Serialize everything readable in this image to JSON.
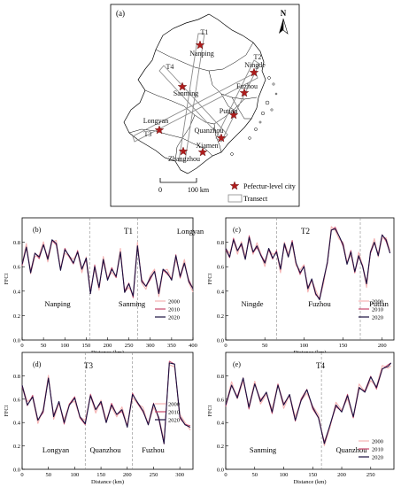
{
  "map": {
    "panel_label": "(a)",
    "north_label": "N",
    "scalebar_labels": [
      "0",
      "100 km"
    ],
    "cities": [
      {
        "name": "Nanping"
      },
      {
        "name": "Ningde"
      },
      {
        "name": "Sanming"
      },
      {
        "name": "Fuzhou"
      },
      {
        "name": "Putian"
      },
      {
        "name": "Longyan"
      },
      {
        "name": "Quanzhou"
      },
      {
        "name": "Xiamen"
      },
      {
        "name": "Zhangzhou"
      }
    ],
    "transects": [
      {
        "name": "T1"
      },
      {
        "name": "T2"
      },
      {
        "name": "T3"
      },
      {
        "name": "T4"
      }
    ],
    "legend": [
      {
        "label": "Pefectur-level city",
        "symbol": "star",
        "color": "#b01c1c"
      },
      {
        "label": "Transect",
        "symbol": "rectangle",
        "color": "#888888"
      }
    ]
  },
  "chart_data": [
    {
      "type": "line",
      "panel": "(b)",
      "transect": "T1",
      "ylabel": "FFCI",
      "xlabel": "Distance (km)",
      "xlim": [
        0,
        400
      ],
      "ylim": [
        0,
        1
      ],
      "xticks": [
        0,
        50,
        100,
        150,
        200,
        250,
        300,
        350,
        400
      ],
      "yticks": [
        0,
        0.2,
        0.4,
        0.6,
        0.8
      ],
      "section_dividers": [
        158,
        270
      ],
      "section_labels": [
        "Nanping",
        "Sanming",
        "Longyan"
      ],
      "legend": [
        "2000",
        "2010",
        "2020"
      ],
      "series_colors": [
        "#f5b2b2",
        "#c8486a",
        "#1a1040"
      ],
      "x": [
        0,
        10,
        20,
        30,
        40,
        50,
        60,
        70,
        80,
        90,
        100,
        110,
        120,
        130,
        140,
        150,
        160,
        170,
        180,
        190,
        200,
        210,
        220,
        230,
        240,
        250,
        260,
        270,
        280,
        290,
        300,
        310,
        320,
        330,
        340,
        350,
        360,
        370,
        380,
        390,
        400
      ],
      "y": [
        0.62,
        0.76,
        0.55,
        0.71,
        0.68,
        0.78,
        0.66,
        0.82,
        0.79,
        0.57,
        0.74,
        0.69,
        0.63,
        0.72,
        0.58,
        0.67,
        0.38,
        0.6,
        0.43,
        0.66,
        0.49,
        0.58,
        0.52,
        0.72,
        0.39,
        0.46,
        0.36,
        0.77,
        0.48,
        0.44,
        0.51,
        0.56,
        0.38,
        0.58,
        0.55,
        0.49,
        0.69,
        0.52,
        0.63,
        0.48,
        0.42
      ]
    },
    {
      "type": "line",
      "panel": "(c)",
      "transect": "T2",
      "ylabel": "FFCI",
      "xlabel": "Distance (km)",
      "xlim": [
        0,
        215
      ],
      "ylim": [
        0,
        1
      ],
      "xticks": [
        0,
        50,
        100,
        150,
        200
      ],
      "yticks": [
        0,
        0.2,
        0.4,
        0.6,
        0.8
      ],
      "section_dividers": [
        65,
        172
      ],
      "section_labels": [
        "Ningde",
        "Fuzhou",
        "Putian"
      ],
      "legend": [
        "2000",
        "2010",
        "2020"
      ],
      "series_colors": [
        "#f5b2b2",
        "#c8486a",
        "#1a1040"
      ],
      "x": [
        0,
        5,
        10,
        15,
        20,
        25,
        30,
        35,
        40,
        45,
        50,
        55,
        60,
        65,
        70,
        75,
        80,
        85,
        90,
        95,
        100,
        105,
        110,
        115,
        120,
        125,
        130,
        135,
        140,
        145,
        150,
        155,
        160,
        165,
        170,
        175,
        180,
        185,
        190,
        195,
        200,
        205,
        210
      ],
      "y": [
        0.75,
        0.68,
        0.82,
        0.73,
        0.79,
        0.66,
        0.84,
        0.72,
        0.77,
        0.69,
        0.63,
        0.75,
        0.67,
        0.72,
        0.58,
        0.79,
        0.68,
        0.8,
        0.63,
        0.55,
        0.6,
        0.42,
        0.5,
        0.38,
        0.33,
        0.49,
        0.64,
        0.9,
        0.91,
        0.85,
        0.78,
        0.62,
        0.72,
        0.56,
        0.69,
        0.6,
        0.46,
        0.72,
        0.8,
        0.69,
        0.86,
        0.82,
        0.71
      ]
    },
    {
      "type": "line",
      "panel": "(d)",
      "transect": "T3",
      "ylabel": "FFCI",
      "xlabel": "Distance (km)",
      "xlim": [
        0,
        325
      ],
      "ylim": [
        0,
        1
      ],
      "xticks": [
        0,
        50,
        100,
        150,
        200,
        250,
        300
      ],
      "yticks": [
        0,
        0.2,
        0.4,
        0.6,
        0.8
      ],
      "section_dividers": [
        120,
        210
      ],
      "section_labels": [
        "Longyan",
        "Quanzhou",
        "Fuzhou"
      ],
      "legend": [
        "2000",
        "2010",
        "2020"
      ],
      "series_colors": [
        "#f5b2b2",
        "#c8486a",
        "#1a1040"
      ],
      "x": [
        0,
        10,
        20,
        30,
        40,
        50,
        60,
        70,
        80,
        90,
        100,
        110,
        120,
        130,
        140,
        150,
        160,
        170,
        180,
        190,
        200,
        210,
        220,
        230,
        240,
        250,
        260,
        270,
        280,
        290,
        300,
        310,
        320
      ],
      "y": [
        0.72,
        0.55,
        0.62,
        0.42,
        0.5,
        0.78,
        0.45,
        0.58,
        0.4,
        0.55,
        0.61,
        0.45,
        0.39,
        0.63,
        0.51,
        0.58,
        0.4,
        0.55,
        0.47,
        0.51,
        0.36,
        0.64,
        0.57,
        0.5,
        0.38,
        0.56,
        0.44,
        0.22,
        0.91,
        0.9,
        0.45,
        0.38,
        0.36
      ]
    },
    {
      "type": "line",
      "panel": "(e)",
      "transect": "T4",
      "ylabel": "FFCI",
      "xlabel": "Distance (km)",
      "xlim": [
        0,
        290
      ],
      "ylim": [
        0,
        1
      ],
      "xticks": [
        0,
        50,
        100,
        150,
        200,
        250
      ],
      "yticks": [
        0,
        0.2,
        0.4,
        0.6,
        0.8
      ],
      "section_dividers": [
        165
      ],
      "section_labels": [
        "Sanming",
        "Quanzhou"
      ],
      "legend": [
        "2000",
        "2010",
        "2020"
      ],
      "series_colors": [
        "#f5b2b2",
        "#c8486a",
        "#1a1040"
      ],
      "x": [
        0,
        10,
        20,
        30,
        40,
        50,
        60,
        70,
        80,
        90,
        100,
        110,
        120,
        130,
        140,
        150,
        160,
        170,
        180,
        190,
        200,
        210,
        220,
        230,
        240,
        250,
        260,
        270,
        280,
        285
      ],
      "y": [
        0.55,
        0.72,
        0.61,
        0.78,
        0.53,
        0.73,
        0.58,
        0.66,
        0.49,
        0.72,
        0.55,
        0.64,
        0.42,
        0.59,
        0.68,
        0.53,
        0.44,
        0.22,
        0.38,
        0.55,
        0.49,
        0.63,
        0.45,
        0.7,
        0.66,
        0.79,
        0.7,
        0.86,
        0.88,
        0.91
      ]
    }
  ]
}
